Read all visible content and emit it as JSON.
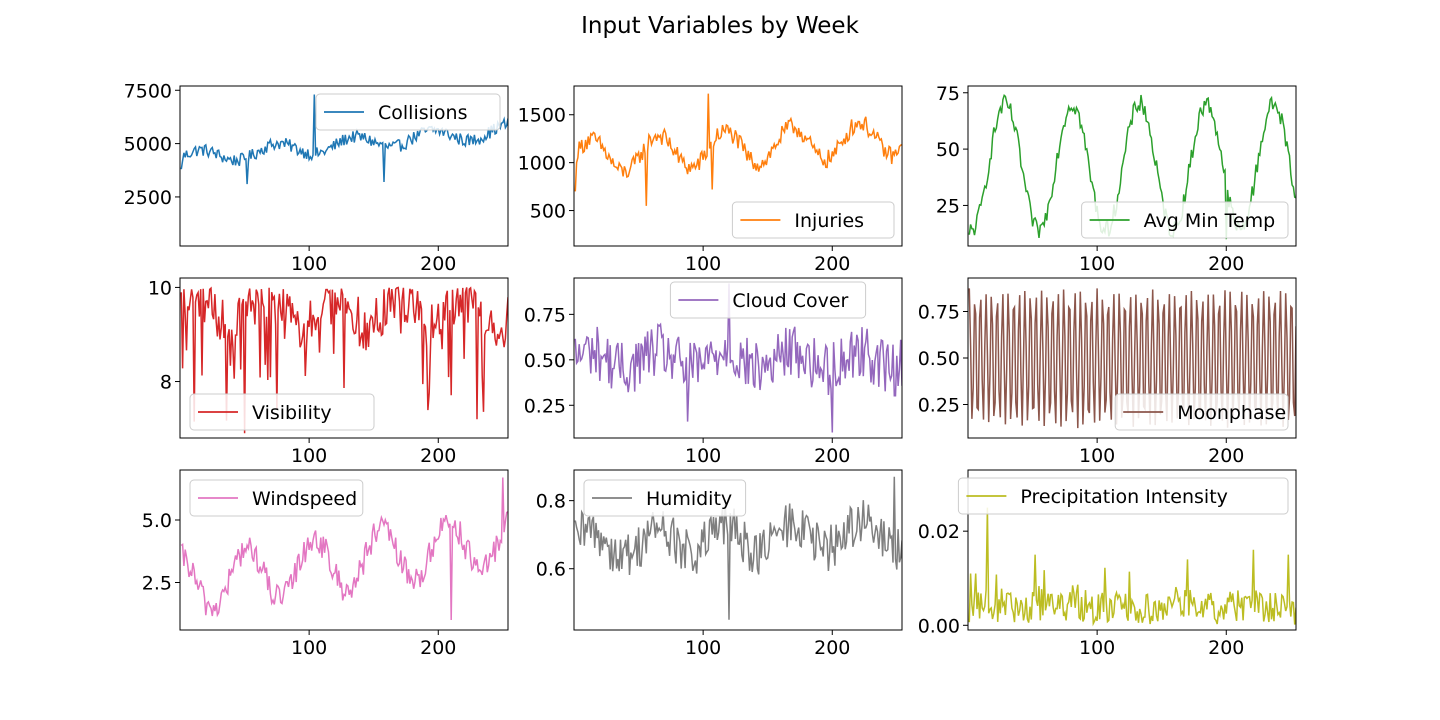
{
  "title": "Input Variables by Week",
  "chart_data": [
    {
      "type": "line",
      "name": "Collisions",
      "color": "#1f77b4",
      "xlim": [
        0,
        254
      ],
      "ylim": [
        200,
        7700
      ],
      "xticks": [
        100,
        200
      ],
      "yticks": [
        2500,
        5000,
        7500
      ],
      "yticklabels": [
        "2500",
        "5000",
        "7500"
      ],
      "legend": "upper right",
      "series": {
        "name": "Collisions",
        "base": 4300,
        "amp": 320,
        "trend": 0.0012,
        "noise": 300,
        "period": 60,
        "spikes": [
          [
            1,
            3800
          ],
          [
            52,
            3100
          ],
          [
            104,
            7300
          ],
          [
            158,
            3200
          ],
          [
            178,
            5300
          ]
        ]
      }
    },
    {
      "type": "line",
      "name": "Injuries",
      "color": "#ff7f0e",
      "xlim": [
        0,
        254
      ],
      "ylim": [
        130,
        1800
      ],
      "xticks": [
        100,
        200
      ],
      "yticks": [
        500,
        1000,
        1500
      ],
      "yticklabels": [
        "500",
        "1000",
        "1500"
      ],
      "legend": "lower right",
      "series": {
        "name": "Injuries",
        "base": 1050,
        "amp": 180,
        "trend": 0.0008,
        "noise": 95,
        "period": 52,
        "spikes": [
          [
            1,
            700
          ],
          [
            56,
            550
          ],
          [
            104,
            1720
          ],
          [
            107,
            720
          ]
        ]
      }
    },
    {
      "type": "line",
      "name": "Avg Min Temp",
      "color": "#2ca02c",
      "xlim": [
        0,
        254
      ],
      "ylim": [
        7,
        78
      ],
      "xticks": [
        100,
        200
      ],
      "yticks": [
        25,
        50,
        75
      ],
      "yticklabels": [
        "25",
        "50",
        "75"
      ],
      "legend": "lower right",
      "series": {
        "name": "Avg Min Temp",
        "base": 42,
        "amp": 28,
        "trend": 0,
        "noise": 4,
        "period": 52,
        "phase": -1.9,
        "spikes": [
          [
            1,
            12
          ],
          [
            134,
            74
          ],
          [
            200,
            10
          ]
        ]
      }
    },
    {
      "type": "line",
      "name": "Visibility",
      "color": "#d62728",
      "xlim": [
        0,
        254
      ],
      "ylim": [
        6.8,
        10.2
      ],
      "xticks": [
        100,
        200
      ],
      "yticks": [
        8,
        10
      ],
      "yticklabels": [
        "8",
        "10"
      ],
      "legend": "lower left",
      "series": {
        "name": "Visibility",
        "base": 9.5,
        "amp": 0.3,
        "trend": 0,
        "noise": 0.55,
        "period": 52,
        "cap": 10,
        "dips": 0.12,
        "spikes": [
          [
            50,
            6.9
          ],
          [
            230,
            7.2
          ]
        ]
      }
    },
    {
      "type": "line",
      "name": "Cloud Cover",
      "color": "#9467bd",
      "xlim": [
        0,
        254
      ],
      "ylim": [
        0.07,
        0.95
      ],
      "xticks": [
        100,
        200
      ],
      "yticks": [
        0.25,
        0.5,
        0.75
      ],
      "yticklabels": [
        "0.25",
        "0.50",
        "0.75"
      ],
      "legend": "upper center",
      "series": {
        "name": "Cloud Cover",
        "base": 0.5,
        "amp": 0.05,
        "trend": 0,
        "noise": 0.15,
        "period": 52,
        "spikes": [
          [
            120,
            0.92
          ],
          [
            200,
            0.1
          ],
          [
            88,
            0.16
          ]
        ]
      }
    },
    {
      "type": "line",
      "name": "Moonphase",
      "color": "#8c564b",
      "xlim": [
        0,
        254
      ],
      "ylim": [
        0.07,
        0.93
      ],
      "xticks": [
        100,
        200
      ],
      "yticks": [
        0.25,
        0.5,
        0.75
      ],
      "yticklabels": [
        "0.25",
        "0.50",
        "0.75"
      ],
      "legend": "lower right",
      "series": {
        "name": "Moonphase",
        "base": 0.5,
        "amp": 0.36,
        "trend": 0,
        "noise": 0.02,
        "period": 4.3,
        "spikes": []
      }
    },
    {
      "type": "line",
      "name": "Windspeed",
      "color": "#e377c2",
      "xlim": [
        0,
        254
      ],
      "ylim": [
        0.6,
        7.0
      ],
      "xticks": [
        100,
        200
      ],
      "yticks": [
        2.5,
        5.0
      ],
      "yticklabels": [
        "2.5",
        "5.0"
      ],
      "legend": "upper left",
      "series": {
        "name": "Windspeed",
        "base": 2.4,
        "amp": 1.1,
        "trend": 0.003,
        "noise": 0.55,
        "period": 52,
        "phase": 1.6,
        "spikes": [
          [
            250,
            6.7
          ],
          [
            210,
            1.0
          ]
        ]
      }
    },
    {
      "type": "line",
      "name": "Humidity",
      "color": "#7f7f7f",
      "xlim": [
        0,
        254
      ],
      "ylim": [
        0.42,
        0.89
      ],
      "xticks": [
        100,
        200
      ],
      "yticks": [
        0.6,
        0.8
      ],
      "yticklabels": [
        "0.6",
        "0.8"
      ],
      "legend": "upper left",
      "series": {
        "name": "Humidity",
        "base": 0.67,
        "amp": 0.04,
        "trend": 0.0002,
        "noise": 0.07,
        "period": 52,
        "spikes": [
          [
            120,
            0.45
          ],
          [
            248,
            0.87
          ]
        ]
      }
    },
    {
      "type": "line",
      "name": "Precipitation Intensity",
      "color": "#bcbd22",
      "xlim": [
        0,
        254
      ],
      "ylim": [
        -0.001,
        0.033
      ],
      "xticks": [
        100,
        200
      ],
      "yticks": [
        0.0,
        0.02
      ],
      "yticklabels": [
        "0.00",
        "0.02"
      ],
      "legend": "upper right",
      "series": {
        "name": "Precipitation Intensity",
        "base": 0.004,
        "amp": 0.0005,
        "trend": 0,
        "noise": 0.0035,
        "period": 52,
        "floor": 0,
        "peaks": 0.12,
        "spikes": [
          [
            15,
            0.025
          ],
          [
            52,
            0.015
          ],
          [
            170,
            0.014
          ],
          [
            248,
            0.015
          ]
        ]
      }
    }
  ]
}
